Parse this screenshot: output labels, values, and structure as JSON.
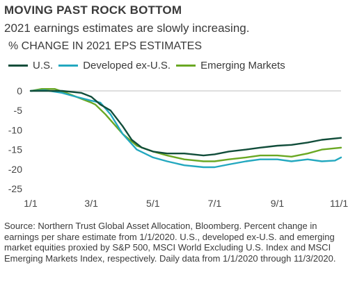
{
  "header": {
    "title": "MOVING PAST ROCK BOTTOM",
    "subtitle": "2021 earnings estimates are slowly increasing."
  },
  "chart_data": {
    "type": "line",
    "ylabel": "% CHANGE IN 2021 EPS ESTIMATES",
    "ylim": [
      -25,
      0
    ],
    "yticks": [
      "0",
      "-5",
      "-10",
      "-15",
      "-20",
      "-25"
    ],
    "xlim": [
      "2020-01-01",
      "2020-11-03"
    ],
    "xticks": [
      {
        "date": "2020-01-01",
        "label": "1/1"
      },
      {
        "date": "2020-03-01",
        "label": "3/1"
      },
      {
        "date": "2020-05-01",
        "label": "5/1"
      },
      {
        "date": "2020-07-01",
        "label": "7/1"
      },
      {
        "date": "2020-09-01",
        "label": "9/1"
      },
      {
        "date": "2020-11-01",
        "label": "11/1"
      }
    ],
    "grid": false,
    "legend_position": "top-left",
    "series": [
      {
        "name": "U.S.",
        "color": "#114d3a",
        "points": [
          [
            "2020-01-01",
            0
          ],
          [
            "2020-01-15",
            0
          ],
          [
            "2020-02-01",
            0
          ],
          [
            "2020-02-20",
            -0.5
          ],
          [
            "2020-03-01",
            -1.5
          ],
          [
            "2020-03-10",
            -3.5
          ],
          [
            "2020-03-20",
            -5
          ],
          [
            "2020-04-01",
            -9
          ],
          [
            "2020-04-10",
            -12.5
          ],
          [
            "2020-04-20",
            -14.5
          ],
          [
            "2020-05-01",
            -15.5
          ],
          [
            "2020-05-15",
            -16
          ],
          [
            "2020-06-01",
            -16
          ],
          [
            "2020-06-20",
            -16.5
          ],
          [
            "2020-07-01",
            -16.2
          ],
          [
            "2020-07-15",
            -15.5
          ],
          [
            "2020-08-01",
            -15
          ],
          [
            "2020-08-15",
            -14.5
          ],
          [
            "2020-09-01",
            -14
          ],
          [
            "2020-09-15",
            -13.8
          ],
          [
            "2020-10-01",
            -13.2
          ],
          [
            "2020-10-15",
            -12.5
          ],
          [
            "2020-11-03",
            -12
          ]
        ]
      },
      {
        "name": "Developed ex-U.S.",
        "color": "#23a8bf",
        "points": [
          [
            "2020-01-01",
            0
          ],
          [
            "2020-01-15",
            0.2
          ],
          [
            "2020-02-01",
            -0.5
          ],
          [
            "2020-02-15",
            -1.5
          ],
          [
            "2020-03-01",
            -2.5
          ],
          [
            "2020-03-10",
            -3
          ],
          [
            "2020-03-20",
            -6
          ],
          [
            "2020-04-01",
            -11
          ],
          [
            "2020-04-15",
            -15
          ],
          [
            "2020-05-01",
            -17
          ],
          [
            "2020-05-15",
            -18
          ],
          [
            "2020-06-01",
            -19
          ],
          [
            "2020-06-20",
            -19.5
          ],
          [
            "2020-07-01",
            -19.5
          ],
          [
            "2020-07-15",
            -18.8
          ],
          [
            "2020-08-01",
            -18
          ],
          [
            "2020-08-15",
            -17.5
          ],
          [
            "2020-09-01",
            -17.5
          ],
          [
            "2020-09-15",
            -18
          ],
          [
            "2020-10-01",
            -17.5
          ],
          [
            "2020-10-15",
            -18
          ],
          [
            "2020-10-28",
            -17.8
          ],
          [
            "2020-11-03",
            -17
          ]
        ]
      },
      {
        "name": "Emerging Markets",
        "color": "#6aa823",
        "points": [
          [
            "2020-01-01",
            0
          ],
          [
            "2020-01-12",
            0.5
          ],
          [
            "2020-01-25",
            0.5
          ],
          [
            "2020-02-05",
            -0.5
          ],
          [
            "2020-02-20",
            -2
          ],
          [
            "2020-03-01",
            -3
          ],
          [
            "2020-03-05",
            -3.5
          ],
          [
            "2020-03-15",
            -6
          ],
          [
            "2020-04-01",
            -11
          ],
          [
            "2020-04-15",
            -14
          ],
          [
            "2020-05-01",
            -15.5
          ],
          [
            "2020-05-15",
            -16.5
          ],
          [
            "2020-06-01",
            -17.5
          ],
          [
            "2020-06-20",
            -18
          ],
          [
            "2020-07-01",
            -18
          ],
          [
            "2020-07-15",
            -17.5
          ],
          [
            "2020-08-01",
            -17
          ],
          [
            "2020-08-15",
            -16.5
          ],
          [
            "2020-09-01",
            -16.5
          ],
          [
            "2020-09-15",
            -16.8
          ],
          [
            "2020-10-01",
            -16
          ],
          [
            "2020-10-15",
            -15
          ],
          [
            "2020-11-03",
            -14.5
          ]
        ]
      }
    ]
  },
  "footer": {
    "source": "Source: Northern Trust Global Asset Allocation, Bloomberg. Percent change in earnings per share estimate from 1/1/2020. U.S., developed ex-U.S. and emerging market equities proxied by S&P 500, MSCI World Excluding U.S. Index and MSCI Emerging Markets Index, respectively. Daily data from 1/1/2020 through 11/3/2020."
  }
}
